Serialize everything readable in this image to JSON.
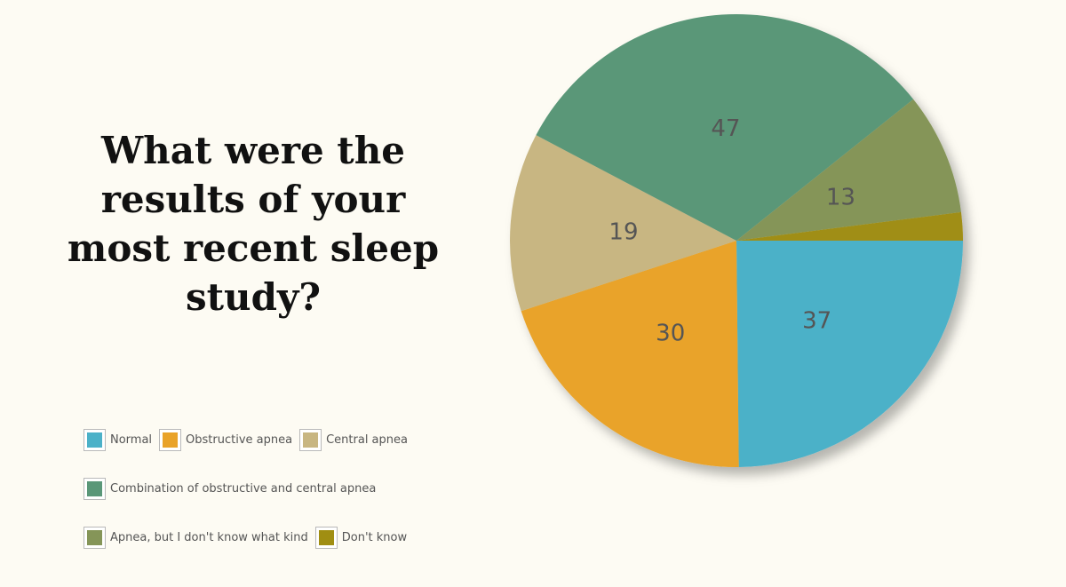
{
  "chart_data": {
    "type": "pie",
    "title": "What were the results of your most recent sleep study?",
    "slices": [
      {
        "label": "Normal",
        "value": 37,
        "color": "#4bb1c8"
      },
      {
        "label": "Obstructive apnea",
        "value": 30,
        "color": "#e9a32a"
      },
      {
        "label": "Central apnea",
        "value": 19,
        "color": "#c8b682"
      },
      {
        "label": "Combination of obstructive and central apnea",
        "value": 47,
        "color": "#5a9778"
      },
      {
        "label": "Apnea, but I don't know what kind",
        "value": 13,
        "color": "#859558"
      },
      {
        "label": "Don't know",
        "value": 3,
        "color": "#a08e12"
      }
    ],
    "data_labels": [
      "37",
      "30",
      "19",
      "47",
      "13",
      ""
    ],
    "legend": {
      "placement": "bottom-left",
      "rows": [
        [
          0,
          1,
          2
        ],
        [
          3
        ],
        [
          4,
          5
        ]
      ]
    }
  }
}
